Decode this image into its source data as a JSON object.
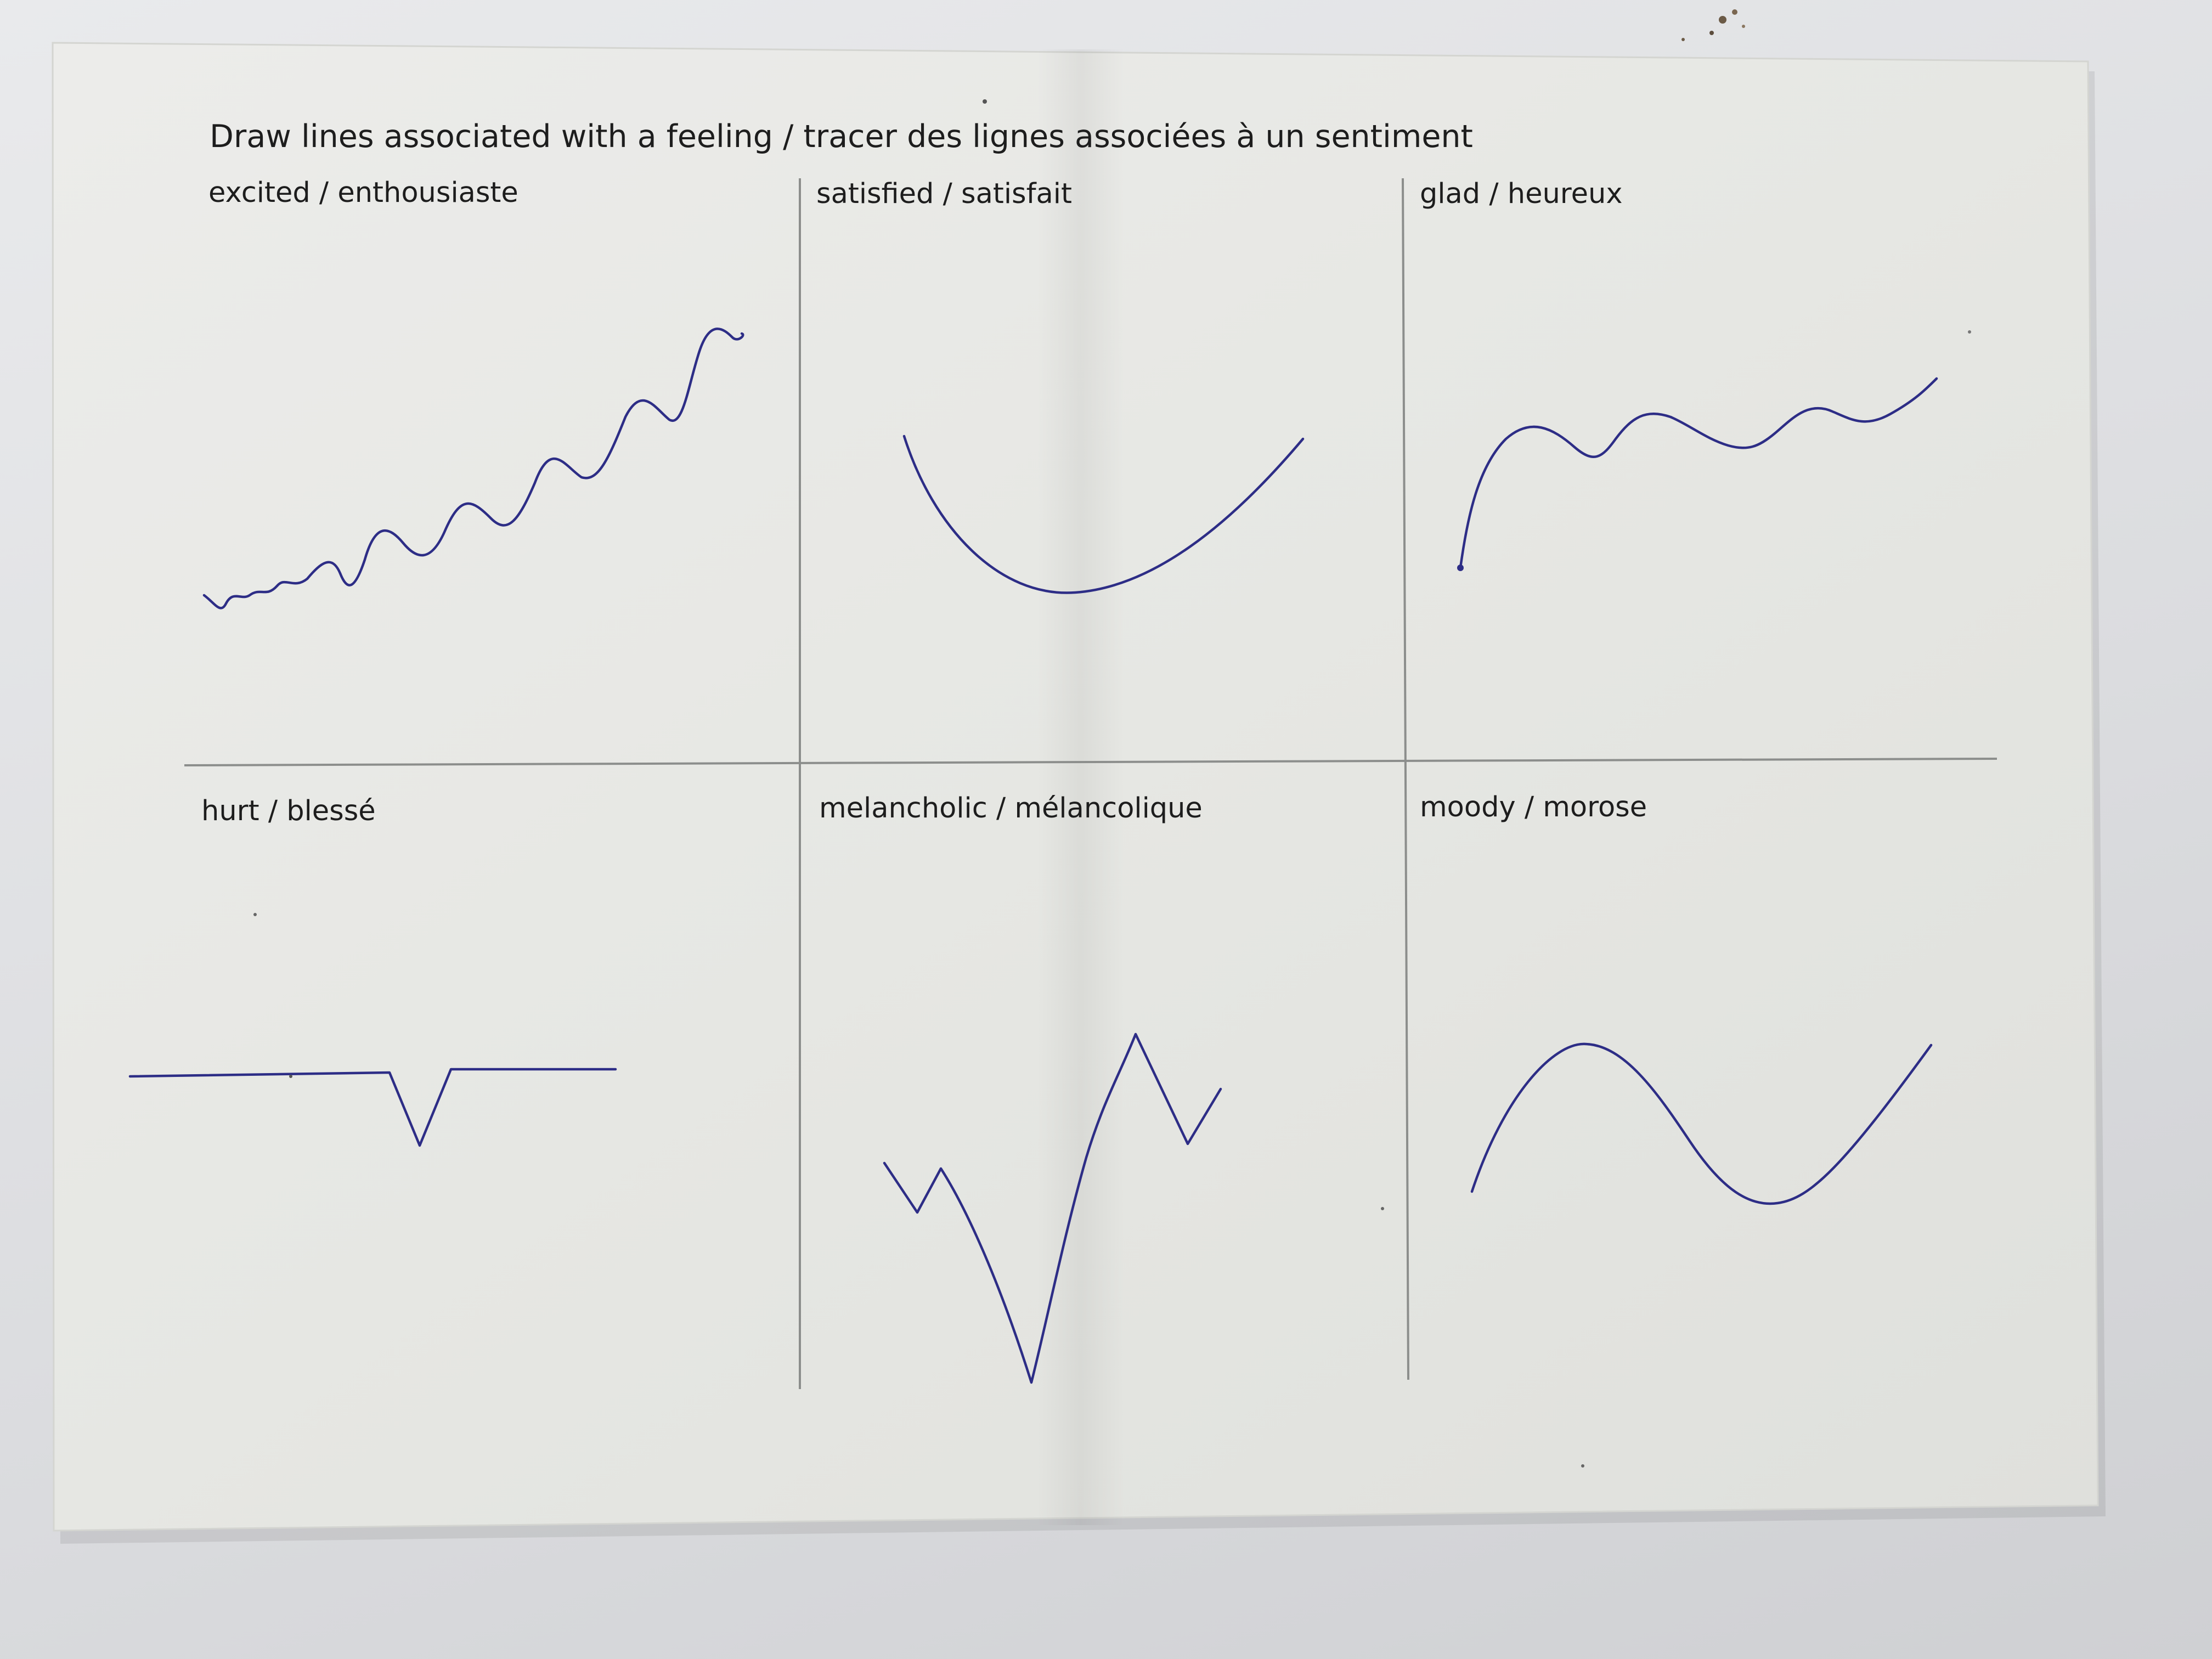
{
  "sheet": {
    "title": "Draw lines associated with a feeling / tracer des lignes associées à un sentiment",
    "cells": [
      {
        "id": "excited",
        "label": "excited / enthousiaste"
      },
      {
        "id": "satisfied",
        "label": "satisfied / satisfait"
      },
      {
        "id": "glad",
        "label": "glad / heureux"
      },
      {
        "id": "hurt",
        "label": "hurt / blessé"
      },
      {
        "id": "melancholic",
        "label": "melancholic / mélancolique"
      },
      {
        "id": "moody",
        "label": "moody / morose"
      }
    ]
  },
  "colors": {
    "paper": "#e7e8e4",
    "grid_line": "#8c8e8c",
    "ink": "#2d2d86",
    "text": "#1d1d1d",
    "background": "#dcdde0"
  }
}
